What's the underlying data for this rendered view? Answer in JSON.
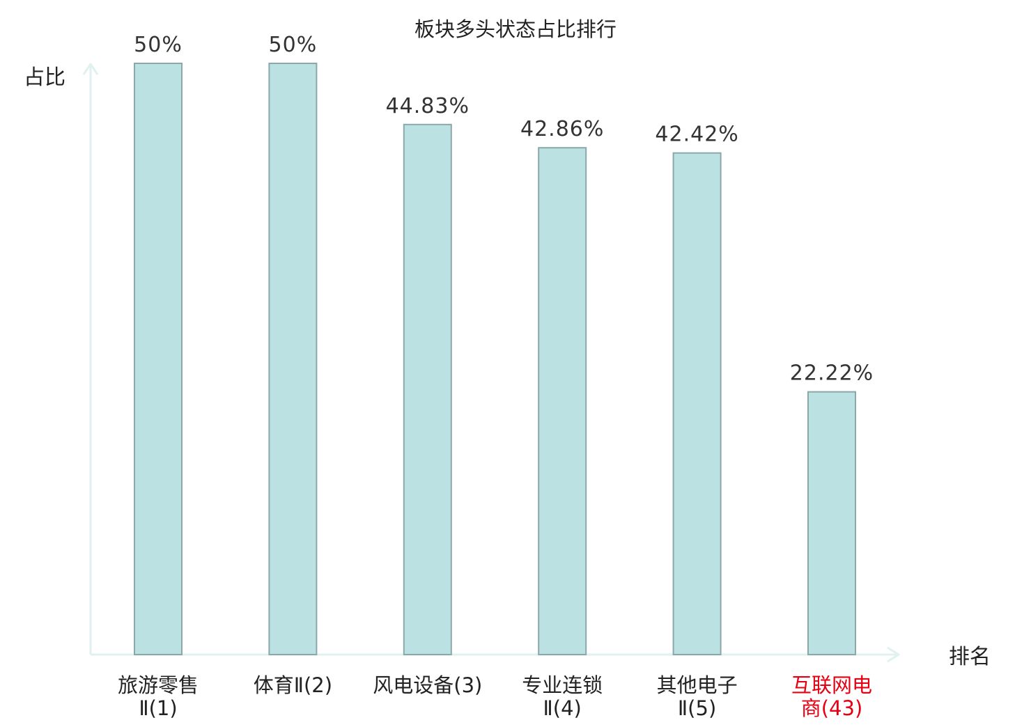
{
  "chart_data": {
    "type": "bar",
    "title": "板块多头状态占比排行",
    "ylabel": "占比",
    "xlabel": "排名",
    "ylim": [
      0,
      50
    ],
    "grid": false,
    "categories": [
      {
        "lines": [
          "旅游零售",
          "Ⅱ(1)"
        ],
        "highlight": false
      },
      {
        "lines": [
          "体育Ⅱ(2)"
        ],
        "highlight": false
      },
      {
        "lines": [
          "风电设备(3)"
        ],
        "highlight": false
      },
      {
        "lines": [
          "专业连锁",
          "Ⅱ(4)"
        ],
        "highlight": false
      },
      {
        "lines": [
          "其他电子",
          "Ⅱ(5)"
        ],
        "highlight": false
      },
      {
        "lines": [
          "互联网电",
          "商(43)"
        ],
        "highlight": true
      }
    ],
    "values": [
      50,
      50,
      44.83,
      42.86,
      42.42,
      22.22
    ],
    "value_labels": [
      "50%",
      "50%",
      "44.83%",
      "42.86%",
      "42.42%",
      "22.22%"
    ]
  },
  "colors": {
    "bar_fill": "#bce1e3",
    "bar_stroke": "#8aa8aa",
    "axis": "#dff2ef",
    "text": "#222222",
    "value_text": "#333333",
    "highlight": "#e60012"
  }
}
